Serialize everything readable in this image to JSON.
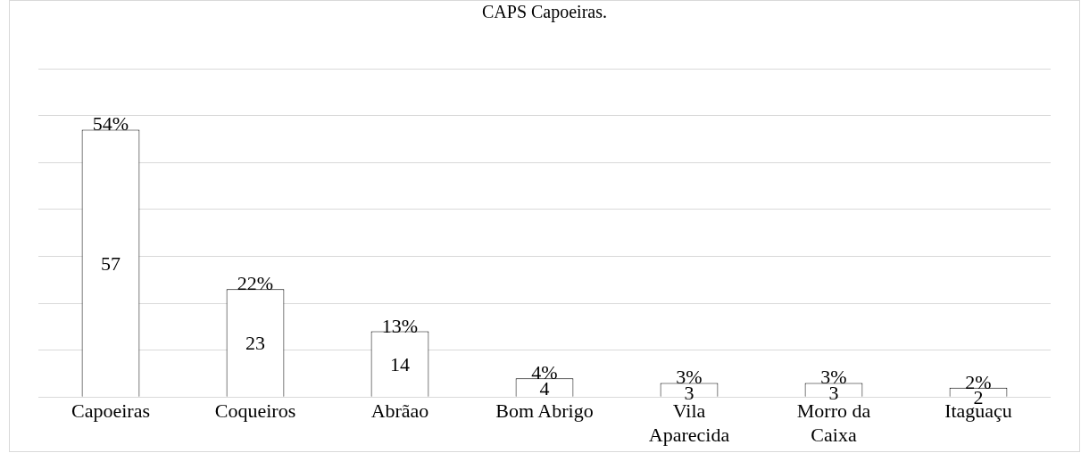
{
  "chart_data": {
    "type": "bar",
    "title": "CAPS Capoeiras.",
    "categories": [
      "Capoeiras",
      "Coqueiros",
      "Abrãao",
      "Bom Abrigo",
      "Vila Aparecida",
      "Morro da Caixa",
      "Itaguaçu"
    ],
    "values": [
      57,
      23,
      14,
      4,
      3,
      3,
      2
    ],
    "value_labels": [
      "57",
      "23",
      "14",
      "4",
      "3",
      "3",
      "2"
    ],
    "annotations": [
      {
        "text": "54%",
        "x": "Capoeiras",
        "y": 57
      },
      {
        "text": "22%",
        "x": "Coqueiros",
        "y": 23
      },
      {
        "text": "13%",
        "x": "Abrãao",
        "y": 14
      },
      {
        "text": "4%",
        "x": "Bom Abrigo",
        "y": 4
      },
      {
        "text": "3%",
        "x": "Vila Aparecida",
        "y": 3
      },
      {
        "text": "3%",
        "x": "Morro da Caixa",
        "y": 3
      },
      {
        "text": "2%",
        "x": "Itaguaçu",
        "y": 2
      }
    ],
    "color": "#ffffff",
    "ylim": [
      0,
      70
    ],
    "yticks": [
      {
        "value": 0,
        "label": null
      },
      {
        "value": 10,
        "label": null
      },
      {
        "value": 20,
        "label": null
      },
      {
        "value": 30,
        "label": null
      },
      {
        "value": 40,
        "label": null
      },
      {
        "value": 50,
        "label": null
      },
      {
        "value": 60,
        "label": null
      },
      {
        "value": 70,
        "label": null
      }
    ],
    "grid": "y",
    "legend": false,
    "tick_labels": "x"
  }
}
